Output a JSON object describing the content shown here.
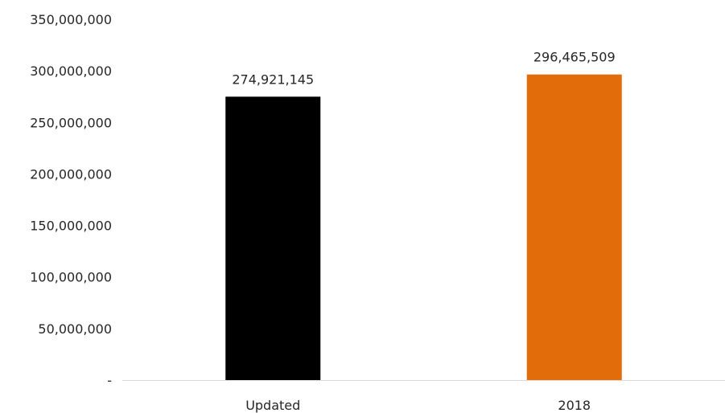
{
  "chart_data": {
    "type": "bar",
    "title": "",
    "xlabel": "",
    "ylabel": "",
    "categories": [
      "Updated",
      "2018"
    ],
    "values": [
      274921145,
      296465509
    ],
    "data_labels": [
      "274,921,145",
      "296,465,509"
    ],
    "bar_colors": [
      "#000000",
      "#E36C0A"
    ],
    "ylim": [
      0,
      350000000
    ],
    "y_ticks": [
      0,
      50000000,
      100000000,
      150000000,
      200000000,
      250000000,
      300000000,
      350000000
    ],
    "y_tick_labels": [
      "-",
      "50,000,000",
      "100,000,000",
      "150,000,000",
      "200,000,000",
      "250,000,000",
      "300,000,000",
      "350,000,000"
    ],
    "grid": false,
    "legend": "none",
    "axis_line_color": "#D9D9D9"
  }
}
